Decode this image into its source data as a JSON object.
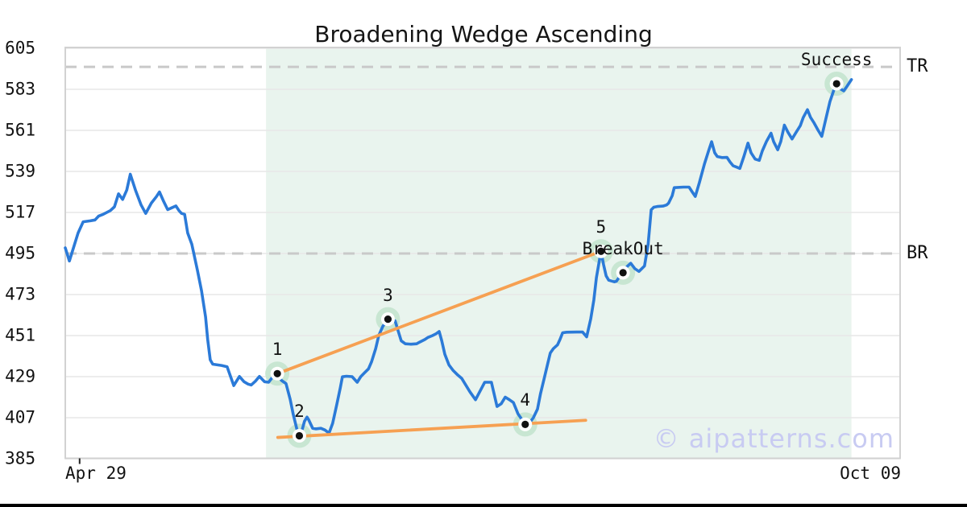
{
  "title": "Broadening Wedge Ascending",
  "watermark": "© aipatterns.com",
  "x_axis": {
    "start_label": "Apr 29",
    "end_label": "Oct 09"
  },
  "y_axis": {
    "ticks": [
      605,
      583,
      561,
      539,
      517,
      495,
      473,
      451,
      429,
      407,
      385
    ]
  },
  "colors": {
    "price_line": "#2b7ad8",
    "trendline": "#f6a052",
    "shaded_region": "#e9f4ee",
    "marker_halo": "#c8e6d2",
    "marker_dot": "#111111",
    "gridline": "#e7e7e7",
    "dashed_level": "#c9c9c9",
    "plot_border": "#d2d2d2",
    "watermark": "#c8cbf2",
    "text": "#111111"
  },
  "chart_data": {
    "type": "line",
    "title": "Broadening Wedge Ascending",
    "xlabel": "",
    "ylabel": "",
    "x_unit": "days since Apr 29 (axis spans Apr 29 = day 0 to Oct 09 = day 163)",
    "x_range": [
      0,
      163
    ],
    "ylim": [
      385,
      605
    ],
    "grid": "horizontal",
    "x_tick_day": 2.8,
    "shaded_region": {
      "from_day": 39.2,
      "to_day": 153.5
    },
    "levels": [
      {
        "label": "TR",
        "value": 595
      },
      {
        "label": "BR",
        "value": 495
      }
    ],
    "trendlines": [
      {
        "name": "upper",
        "from": [
          41.4,
          430.6
        ],
        "to": [
          104.6,
          496.2
        ]
      },
      {
        "name": "lower",
        "from": [
          41.5,
          396.4
        ],
        "to": [
          101.6,
          405.6
        ]
      }
    ],
    "markers": [
      {
        "label": "1",
        "day": 41.4,
        "price": 430.6
      },
      {
        "label": "2",
        "day": 45.7,
        "price": 397.3
      },
      {
        "label": "3",
        "day": 63.0,
        "price": 459.8
      },
      {
        "label": "4",
        "day": 89.8,
        "price": 403.4
      },
      {
        "label": "5",
        "day": 104.6,
        "price": 496.2
      },
      {
        "label": "BreakOut",
        "day": 108.9,
        "price": 484.7
      },
      {
        "label": "Success",
        "day": 150.6,
        "price": 586.0
      }
    ],
    "series": [
      {
        "name": "price",
        "points": [
          [
            0,
            498
          ],
          [
            0.8,
            491
          ],
          [
            2.5,
            506
          ],
          [
            3.5,
            512
          ],
          [
            4.9,
            512.5
          ],
          [
            5.8,
            513
          ],
          [
            6.5,
            515
          ],
          [
            7.4,
            516
          ],
          [
            8.8,
            518
          ],
          [
            9.6,
            520
          ],
          [
            10.4,
            527
          ],
          [
            11.2,
            524
          ],
          [
            12,
            529
          ],
          [
            12.7,
            537.5
          ],
          [
            13.7,
            529
          ],
          [
            14.8,
            521
          ],
          [
            15.7,
            516.5
          ],
          [
            16.8,
            522
          ],
          [
            17.8,
            525.5
          ],
          [
            18.4,
            528
          ],
          [
            19.2,
            523
          ],
          [
            20,
            518.5
          ],
          [
            20.8,
            519.5
          ],
          [
            21.6,
            520.5
          ],
          [
            22.2,
            518
          ],
          [
            22.7,
            516.5
          ],
          [
            23.3,
            516
          ],
          [
            23.9,
            506
          ],
          [
            24.7,
            500
          ],
          [
            25.8,
            486
          ],
          [
            26.6,
            475
          ],
          [
            27.4,
            461
          ],
          [
            27.8,
            449
          ],
          [
            28.3,
            438
          ],
          [
            28.8,
            435.7
          ],
          [
            29.7,
            435.3
          ],
          [
            30.5,
            435
          ],
          [
            31.6,
            434.3
          ],
          [
            32.9,
            424.2
          ],
          [
            34,
            429.1
          ],
          [
            34.9,
            426.3
          ],
          [
            35.7,
            425
          ],
          [
            36.3,
            424.5
          ],
          [
            37.1,
            426.5
          ],
          [
            37.9,
            429.1
          ],
          [
            38.9,
            426.3
          ],
          [
            39.7,
            426
          ],
          [
            40.4,
            428.5
          ],
          [
            41.4,
            430.6
          ],
          [
            42.2,
            427
          ],
          [
            43.1,
            425.3
          ],
          [
            43.9,
            417
          ],
          [
            44.5,
            409
          ],
          [
            45.2,
            401
          ],
          [
            45.7,
            397.3
          ],
          [
            46.3,
            401
          ],
          [
            46.7,
            405
          ],
          [
            47.2,
            407.3
          ],
          [
            47.5,
            406
          ],
          [
            48.3,
            401.3
          ],
          [
            48.9,
            401
          ],
          [
            49.9,
            401.3
          ],
          [
            50.7,
            400.4
          ],
          [
            51.5,
            398.7
          ],
          [
            52.2,
            404
          ],
          [
            53,
            414
          ],
          [
            53.7,
            423
          ],
          [
            54.1,
            428.9
          ],
          [
            54.9,
            429.2
          ],
          [
            56,
            429
          ],
          [
            57,
            426
          ],
          [
            57.7,
            429
          ],
          [
            58.4,
            431
          ],
          [
            59.2,
            433.2
          ],
          [
            59.8,
            437
          ],
          [
            60.6,
            444
          ],
          [
            61.2,
            451
          ],
          [
            62,
            456
          ],
          [
            63,
            459.8
          ],
          [
            63.7,
            459.5
          ],
          [
            64.4,
            458.9
          ],
          [
            65.1,
            452.5
          ],
          [
            65.6,
            448.2
          ],
          [
            66.4,
            446.6
          ],
          [
            67.5,
            446.4
          ],
          [
            68.6,
            446.6
          ],
          [
            69.2,
            447.5
          ],
          [
            70.2,
            448.9
          ],
          [
            70.8,
            450
          ],
          [
            71.7,
            451
          ],
          [
            72.4,
            452
          ],
          [
            73,
            453.2
          ],
          [
            73.5,
            448.2
          ],
          [
            74.1,
            441
          ],
          [
            74.9,
            435.3
          ],
          [
            75.7,
            432.4
          ],
          [
            76.5,
            430.2
          ],
          [
            77.4,
            428.1
          ],
          [
            78.2,
            424.5
          ],
          [
            79,
            420.9
          ],
          [
            80.1,
            416.6
          ],
          [
            81.9,
            426
          ],
          [
            83.2,
            426
          ],
          [
            84.3,
            413
          ],
          [
            85.1,
            414.4
          ],
          [
            85.9,
            418
          ],
          [
            86.7,
            416.6
          ],
          [
            87.5,
            415.1
          ],
          [
            88.4,
            409
          ],
          [
            89.2,
            405.9
          ],
          [
            89.8,
            403.4
          ],
          [
            90.6,
            404
          ],
          [
            91.4,
            407
          ],
          [
            92.2,
            411.6
          ],
          [
            92.8,
            420
          ],
          [
            93.5,
            428
          ],
          [
            94.2,
            436
          ],
          [
            94.7,
            441.7
          ],
          [
            95.3,
            444
          ],
          [
            96.1,
            446
          ],
          [
            96.6,
            449
          ],
          [
            97.1,
            452.5
          ],
          [
            97.9,
            452.8
          ],
          [
            99.9,
            452.9
          ],
          [
            101,
            452.9
          ],
          [
            101.8,
            450.3
          ],
          [
            102.6,
            460
          ],
          [
            103.2,
            470
          ],
          [
            103.7,
            482
          ],
          [
            104.2,
            490
          ],
          [
            104.6,
            496.2
          ],
          [
            105.1,
            489
          ],
          [
            105.6,
            483
          ],
          [
            106.1,
            480.7
          ],
          [
            107.2,
            479.8
          ],
          [
            107.6,
            480.1
          ],
          [
            108.2,
            482.5
          ],
          [
            108.9,
            484.7
          ],
          [
            109.7,
            488
          ],
          [
            110.4,
            489.8
          ],
          [
            111.2,
            486.9
          ],
          [
            112,
            485.4
          ],
          [
            113.1,
            488.3
          ],
          [
            113.8,
            500
          ],
          [
            114.4,
            518.4
          ],
          [
            114.9,
            519.8
          ],
          [
            115.6,
            520.2
          ],
          [
            116.7,
            520.4
          ],
          [
            117.4,
            521
          ],
          [
            117.8,
            522
          ],
          [
            118.5,
            526
          ],
          [
            118.9,
            530.3
          ],
          [
            120.7,
            530.6
          ],
          [
            121.8,
            530.6
          ],
          [
            122.4,
            528
          ],
          [
            123,
            525.6
          ],
          [
            123.8,
            533
          ],
          [
            124.8,
            543
          ],
          [
            125.6,
            550
          ],
          [
            126.2,
            554.9
          ],
          [
            126.8,
            549
          ],
          [
            127.3,
            547
          ],
          [
            128.2,
            546.4
          ],
          [
            129.2,
            546.5
          ],
          [
            129.8,
            544
          ],
          [
            130.4,
            542
          ],
          [
            131.1,
            541.3
          ],
          [
            131.7,
            540.6
          ],
          [
            132.5,
            547
          ],
          [
            133.3,
            554.2
          ],
          [
            133.9,
            549
          ],
          [
            134.7,
            545.6
          ],
          [
            135.5,
            544.9
          ],
          [
            136.1,
            550
          ],
          [
            136.9,
            555
          ],
          [
            137.8,
            559.5
          ],
          [
            138.3,
            555
          ],
          [
            139.1,
            550.6
          ],
          [
            139.7,
            555
          ],
          [
            140.4,
            563.8
          ],
          [
            141.1,
            560
          ],
          [
            141.9,
            556.4
          ],
          [
            142.7,
            560
          ],
          [
            143.5,
            563.5
          ],
          [
            144.1,
            568
          ],
          [
            144.9,
            572.1
          ],
          [
            145.5,
            568
          ],
          [
            146.2,
            565
          ],
          [
            147,
            561
          ],
          [
            147.7,
            557.8
          ],
          [
            148.5,
            567.1
          ],
          [
            149.3,
            576.4
          ],
          [
            150.1,
            582.9
          ],
          [
            150.6,
            586
          ],
          [
            151.2,
            583.5
          ],
          [
            152,
            582.2
          ],
          [
            152.6,
            584.5
          ],
          [
            153.5,
            588.2
          ]
        ]
      }
    ]
  }
}
